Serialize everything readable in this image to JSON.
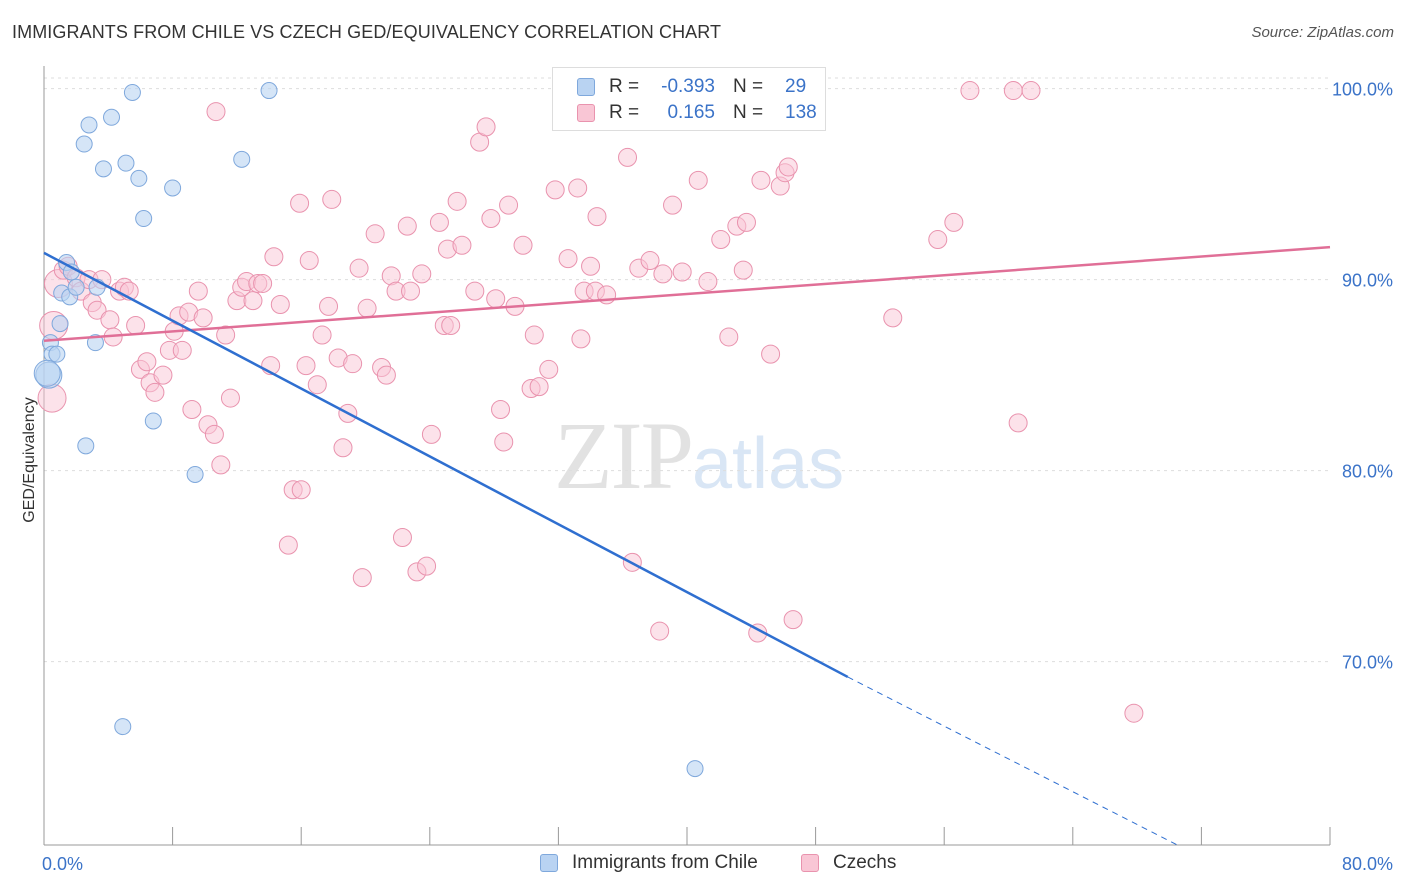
{
  "header": {
    "title": "IMMIGRANTS FROM CHILE VS CZECH GED/EQUIVALENCY CORRELATION CHART",
    "source": "Source: ZipAtlas.com"
  },
  "legend": {
    "rows": [
      {
        "r_label": "R =",
        "r_value": "-0.393",
        "n_label": "N =",
        "n_value": "29"
      },
      {
        "r_label": "R =",
        "r_value": "0.165",
        "n_label": "N =",
        "n_value": "138"
      }
    ],
    "bottom": [
      "Immigrants from Chile",
      "Czechs"
    ]
  },
  "watermark": {
    "zip": "ZIP",
    "atlas": "atlas"
  },
  "colors": {
    "chile_fill": "#b9d3f2",
    "chile_stroke": "#7fa8dc",
    "chile_line": "#2f6fd0",
    "czech_fill": "#f9c6d5",
    "czech_stroke": "#e993ae",
    "czech_line": "#e06f97",
    "tick_label": "#3b73c8",
    "grid": "#dddddd"
  },
  "chart_data": {
    "type": "scatter",
    "title": "IMMIGRANTS FROM CHILE VS CZECH GED/EQUIVALENCY CORRELATION CHART",
    "xlabel": "",
    "ylabel": "GED/Equivalency",
    "xlim": [
      0,
      80
    ],
    "ylim": [
      60.4,
      101.5
    ],
    "x_tick_labels": [
      "0.0%",
      "80.0%"
    ],
    "y_ticks": [
      70,
      80,
      90,
      100
    ],
    "y_tick_labels": [
      "70.0%",
      "80.0%",
      "90.0%",
      "100.0%"
    ],
    "grid": "horizontal dashed",
    "series": [
      {
        "name": "Immigrants from Chile",
        "trend": {
          "x0": 0,
          "y0": 91.4,
          "x1": 50,
          "y1": 69.2,
          "dashed_to_x": 70.5,
          "dashed_to_y": 60.4
        },
        "points": [
          [
            0.3,
            85.0
          ],
          [
            0.4,
            86.7
          ],
          [
            0.5,
            86.1
          ],
          [
            0.8,
            86.1
          ],
          [
            1.0,
            87.7
          ],
          [
            1.1,
            89.3
          ],
          [
            1.4,
            90.9
          ],
          [
            1.6,
            89.1
          ],
          [
            1.7,
            90.4
          ],
          [
            2.0,
            89.6
          ],
          [
            2.5,
            97.1
          ],
          [
            2.8,
            98.1
          ],
          [
            3.2,
            86.7
          ],
          [
            3.3,
            89.6
          ],
          [
            3.7,
            95.8
          ],
          [
            4.2,
            98.5
          ],
          [
            5.1,
            96.1
          ],
          [
            5.5,
            99.8
          ],
          [
            5.9,
            95.3
          ],
          [
            6.2,
            93.2
          ],
          [
            6.8,
            82.6
          ],
          [
            8.0,
            94.8
          ],
          [
            9.4,
            79.8
          ],
          [
            12.3,
            96.3
          ],
          [
            14.0,
            99.9
          ],
          [
            2.6,
            81.3
          ],
          [
            4.9,
            66.6
          ],
          [
            40.5,
            64.4
          ],
          [
            0.2,
            85.1
          ]
        ]
      },
      {
        "name": "Czechs",
        "trend": {
          "x0": 0,
          "y0": 86.8,
          "x1": 80,
          "y1": 91.7
        },
        "points": [
          [
            0.5,
            83.8
          ],
          [
            0.6,
            87.6
          ],
          [
            0.9,
            89.8
          ],
          [
            1.2,
            90.5
          ],
          [
            1.5,
            90.7
          ],
          [
            2.0,
            90.1
          ],
          [
            2.3,
            89.4
          ],
          [
            2.8,
            90.0
          ],
          [
            3.0,
            88.8
          ],
          [
            3.3,
            88.4
          ],
          [
            3.6,
            90.0
          ],
          [
            4.1,
            87.9
          ],
          [
            4.3,
            87.0
          ],
          [
            4.7,
            89.4
          ],
          [
            5.0,
            89.6
          ],
          [
            5.3,
            89.4
          ],
          [
            5.7,
            87.6
          ],
          [
            6.0,
            85.3
          ],
          [
            6.4,
            85.7
          ],
          [
            6.6,
            84.6
          ],
          [
            6.9,
            84.1
          ],
          [
            7.4,
            85.0
          ],
          [
            7.8,
            86.3
          ],
          [
            8.1,
            87.3
          ],
          [
            8.4,
            88.1
          ],
          [
            8.6,
            86.3
          ],
          [
            9.0,
            88.3
          ],
          [
            9.2,
            83.2
          ],
          [
            9.6,
            89.4
          ],
          [
            9.9,
            88.0
          ],
          [
            10.2,
            82.4
          ],
          [
            10.6,
            81.9
          ],
          [
            11.0,
            80.3
          ],
          [
            11.3,
            87.1
          ],
          [
            11.6,
            83.8
          ],
          [
            12.0,
            88.9
          ],
          [
            12.3,
            89.6
          ],
          [
            12.6,
            89.9
          ],
          [
            13.0,
            88.9
          ],
          [
            13.3,
            89.8
          ],
          [
            13.6,
            89.8
          ],
          [
            14.1,
            85.5
          ],
          [
            14.3,
            91.2
          ],
          [
            14.7,
            88.7
          ],
          [
            15.2,
            76.1
          ],
          [
            15.5,
            79.0
          ],
          [
            15.9,
            94.0
          ],
          [
            16.0,
            79.0
          ],
          [
            16.3,
            85.5
          ],
          [
            16.5,
            91.0
          ],
          [
            17.0,
            84.5
          ],
          [
            17.3,
            87.1
          ],
          [
            17.7,
            88.6
          ],
          [
            17.9,
            94.2
          ],
          [
            18.3,
            85.9
          ],
          [
            18.6,
            81.2
          ],
          [
            18.9,
            83.0
          ],
          [
            19.2,
            85.6
          ],
          [
            19.6,
            90.6
          ],
          [
            19.8,
            74.4
          ],
          [
            20.1,
            88.5
          ],
          [
            20.6,
            92.4
          ],
          [
            21.0,
            85.4
          ],
          [
            21.3,
            85.0
          ],
          [
            21.6,
            90.2
          ],
          [
            21.9,
            89.4
          ],
          [
            22.3,
            76.5
          ],
          [
            22.6,
            92.8
          ],
          [
            22.8,
            89.4
          ],
          [
            23.2,
            74.7
          ],
          [
            23.5,
            90.3
          ],
          [
            23.8,
            75.0
          ],
          [
            24.1,
            81.9
          ],
          [
            24.6,
            93.0
          ],
          [
            24.9,
            87.6
          ],
          [
            25.1,
            91.6
          ],
          [
            25.3,
            87.6
          ],
          [
            25.7,
            94.1
          ],
          [
            26.0,
            91.8
          ],
          [
            26.8,
            89.4
          ],
          [
            27.1,
            97.2
          ],
          [
            27.5,
            98.0
          ],
          [
            27.8,
            93.2
          ],
          [
            28.1,
            89.0
          ],
          [
            28.4,
            83.2
          ],
          [
            28.6,
            81.5
          ],
          [
            28.9,
            93.9
          ],
          [
            29.3,
            88.6
          ],
          [
            29.8,
            91.8
          ],
          [
            30.3,
            84.3
          ],
          [
            30.5,
            87.1
          ],
          [
            30.8,
            84.4
          ],
          [
            31.4,
            85.3
          ],
          [
            31.8,
            94.7
          ],
          [
            32.2,
            98.5
          ],
          [
            32.6,
            91.1
          ],
          [
            33.2,
            94.8
          ],
          [
            33.4,
            86.9
          ],
          [
            33.6,
            89.4
          ],
          [
            34.0,
            90.7
          ],
          [
            34.3,
            89.4
          ],
          [
            34.4,
            93.3
          ],
          [
            35.0,
            89.2
          ],
          [
            36.0,
            99.8
          ],
          [
            36.3,
            96.4
          ],
          [
            36.6,
            75.2
          ],
          [
            37.0,
            90.6
          ],
          [
            37.7,
            91.0
          ],
          [
            38.3,
            71.6
          ],
          [
            38.5,
            90.3
          ],
          [
            39.1,
            93.9
          ],
          [
            39.7,
            90.4
          ],
          [
            40.7,
            95.2
          ],
          [
            41.3,
            89.9
          ],
          [
            42.1,
            92.1
          ],
          [
            42.6,
            87.0
          ],
          [
            43.1,
            92.8
          ],
          [
            43.5,
            90.5
          ],
          [
            43.7,
            93.0
          ],
          [
            44.4,
            71.5
          ],
          [
            44.6,
            95.2
          ],
          [
            45.2,
            86.1
          ],
          [
            45.8,
            94.9
          ],
          [
            46.1,
            95.6
          ],
          [
            46.3,
            95.9
          ],
          [
            46.6,
            72.2
          ],
          [
            47.0,
            99.9
          ],
          [
            52.8,
            88.0
          ],
          [
            55.6,
            92.1
          ],
          [
            56.6,
            93.0
          ],
          [
            57.6,
            99.9
          ],
          [
            60.3,
            99.9
          ],
          [
            60.6,
            82.5
          ],
          [
            61.4,
            99.9
          ],
          [
            67.8,
            67.3
          ],
          [
            10.7,
            98.8
          ]
        ]
      }
    ]
  }
}
